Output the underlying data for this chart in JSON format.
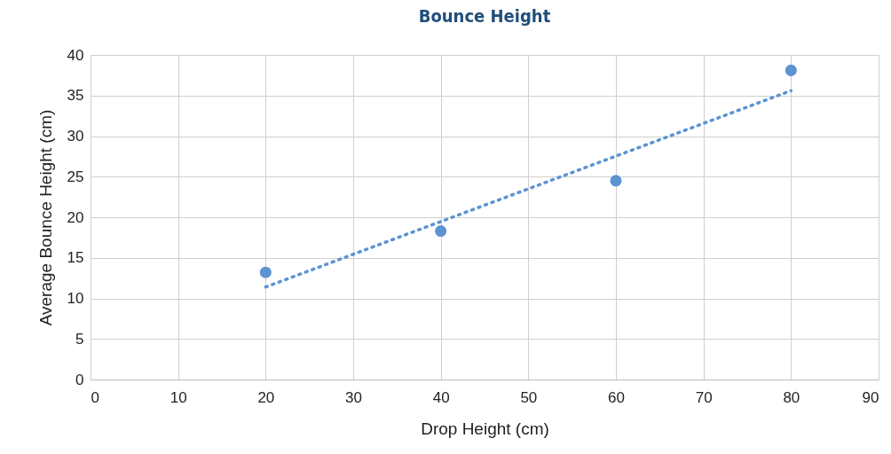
{
  "chart_data": {
    "type": "scatter",
    "title": "Bounce Height",
    "xlabel": "Drop Height (cm)",
    "ylabel": "Average Bounce Height (cm)",
    "x": [
      20,
      40,
      60,
      80
    ],
    "series": [
      {
        "color": "#5b93d3",
        "values": [
          13.2,
          18.3,
          24.5,
          38.1
        ],
        "marker": "circle"
      },
      {
        "type": "line",
        "color": "#5b93d3",
        "x": [
          20,
          80
        ],
        "values": [
          11.4,
          35.6
        ],
        "line_style": "dotted",
        "marker": "none"
      }
    ],
    "xlim": [
      0,
      90
    ],
    "xticks": [
      0,
      10,
      20,
      30,
      40,
      50,
      60,
      70,
      80,
      90
    ],
    "ylim": [
      0,
      40
    ],
    "yticks": [
      0,
      5,
      10,
      15,
      20,
      25,
      30,
      35,
      40
    ],
    "grid": true
  }
}
